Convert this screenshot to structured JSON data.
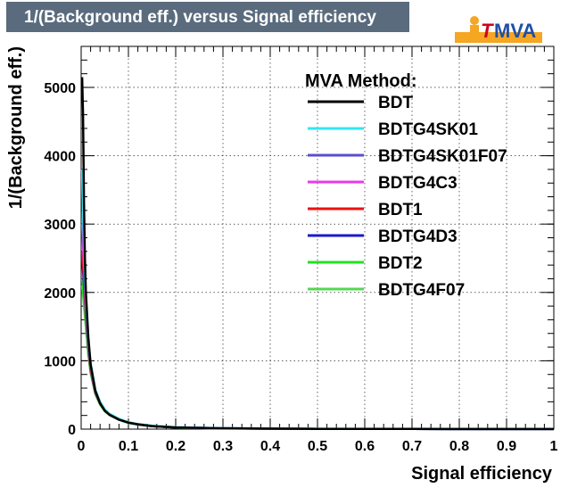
{
  "title": "1/(Background eff.) versus Signal efficiency",
  "logo": {
    "text": "MVA",
    "prefix": "T"
  },
  "chart_data": {
    "type": "line",
    "xlabel": "Signal efficiency",
    "ylabel": "1/(Background eff.)",
    "xlim": [
      0,
      1
    ],
    "ylim": [
      0,
      5600
    ],
    "x_ticks": [
      "0",
      "0.1",
      "0.2",
      "0.3",
      "0.4",
      "0.5",
      "0.6",
      "0.7",
      "0.8",
      "0.9",
      "1"
    ],
    "y_ticks": [
      "0",
      "1000",
      "2000",
      "3000",
      "4000",
      "5000"
    ],
    "grid": true,
    "legend_title": "MVA Method:",
    "legend_position": "top-right",
    "series": [
      {
        "name": "BDT",
        "color": "#000000",
        "x": [
          0.002,
          0.004,
          0.006,
          0.008,
          0.01,
          0.015,
          0.02,
          0.03,
          0.04,
          0.05,
          0.06,
          0.08,
          0.1,
          0.12,
          0.15,
          0.2,
          0.3,
          0.5,
          0.7,
          1.0
        ],
        "y": [
          5150,
          4600,
          3300,
          2500,
          2000,
          1350,
          950,
          560,
          380,
          270,
          210,
          140,
          95,
          70,
          45,
          25,
          12,
          4,
          2,
          1
        ]
      },
      {
        "name": "BDTG4SK01",
        "color": "#33e5f2",
        "x": [
          0.002,
          0.004,
          0.006,
          0.008,
          0.01,
          0.015,
          0.02,
          0.03,
          0.04,
          0.05,
          0.06,
          0.08,
          0.1,
          0.12,
          0.15,
          0.2,
          0.3,
          0.5,
          0.7,
          1.0
        ],
        "y": [
          3800,
          3200,
          2700,
          2300,
          1900,
          1300,
          960,
          580,
          400,
          290,
          225,
          150,
          100,
          75,
          48,
          27,
          13,
          5,
          2,
          1
        ]
      },
      {
        "name": "BDTG4SK01F07",
        "color": "#5a4fcf",
        "x": [
          0.002,
          0.004,
          0.006,
          0.008,
          0.01,
          0.015,
          0.02,
          0.03,
          0.04,
          0.05,
          0.06,
          0.08,
          0.1,
          0.12,
          0.15,
          0.2,
          0.3,
          0.5,
          0.7,
          1.0
        ],
        "y": [
          3700,
          3100,
          2600,
          2200,
          1850,
          1260,
          930,
          560,
          390,
          280,
          220,
          145,
          98,
          72,
          47,
          26,
          12,
          4,
          2,
          1
        ]
      },
      {
        "name": "BDTG4C3",
        "color": "#e83ae8",
        "x": [
          0.002,
          0.004,
          0.006,
          0.008,
          0.01,
          0.015,
          0.02,
          0.03,
          0.04,
          0.05,
          0.06,
          0.08,
          0.1,
          0.12,
          0.15,
          0.2,
          0.3,
          0.5,
          0.7,
          1.0
        ],
        "y": [
          3000,
          2700,
          2400,
          2100,
          1800,
          1250,
          920,
          555,
          385,
          278,
          218,
          144,
          97,
          71,
          46,
          26,
          12,
          4,
          2,
          1
        ]
      },
      {
        "name": "BDT1",
        "color": "#ee1111",
        "x": [
          0.002,
          0.004,
          0.006,
          0.008,
          0.01,
          0.015,
          0.02,
          0.03,
          0.04,
          0.05,
          0.06,
          0.08,
          0.1,
          0.12,
          0.15,
          0.2,
          0.3,
          0.5,
          0.7,
          1.0
        ],
        "y": [
          2600,
          2400,
          2200,
          1950,
          1700,
          1200,
          880,
          540,
          375,
          272,
          214,
          141,
          95,
          70,
          45,
          25,
          12,
          4,
          2,
          1
        ]
      },
      {
        "name": "BDTG4D3",
        "color": "#1a1ac8",
        "x": [
          0.002,
          0.004,
          0.006,
          0.008,
          0.01,
          0.015,
          0.02,
          0.03,
          0.04,
          0.05,
          0.06,
          0.08,
          0.1,
          0.12,
          0.15,
          0.2,
          0.3,
          0.5,
          0.7,
          1.0
        ],
        "y": [
          2500,
          2300,
          2100,
          1900,
          1650,
          1180,
          870,
          535,
          372,
          270,
          212,
          140,
          94,
          69,
          44,
          25,
          12,
          4,
          2,
          1
        ]
      },
      {
        "name": "BDT2",
        "color": "#22e022",
        "x": [
          0.002,
          0.004,
          0.006,
          0.008,
          0.01,
          0.015,
          0.02,
          0.03,
          0.04,
          0.05,
          0.06,
          0.08,
          0.1,
          0.12,
          0.15,
          0.2,
          0.3,
          0.5,
          0.7,
          1.0
        ],
        "y": [
          2200,
          2050,
          1900,
          1750,
          1550,
          1120,
          840,
          520,
          365,
          266,
          209,
          138,
          93,
          68,
          44,
          24,
          11,
          4,
          2,
          1
        ]
      },
      {
        "name": "BDTG4F07",
        "color": "#55d655",
        "x": [
          0.002,
          0.004,
          0.006,
          0.008,
          0.01,
          0.015,
          0.02,
          0.03,
          0.04,
          0.05,
          0.06,
          0.08,
          0.1,
          0.12,
          0.15,
          0.2,
          0.3,
          0.5,
          0.7,
          1.0
        ],
        "y": [
          2100,
          1950,
          1800,
          1650,
          1500,
          1100,
          820,
          510,
          360,
          262,
          206,
          136,
          92,
          67,
          43,
          24,
          11,
          4,
          2,
          1
        ]
      }
    ]
  }
}
